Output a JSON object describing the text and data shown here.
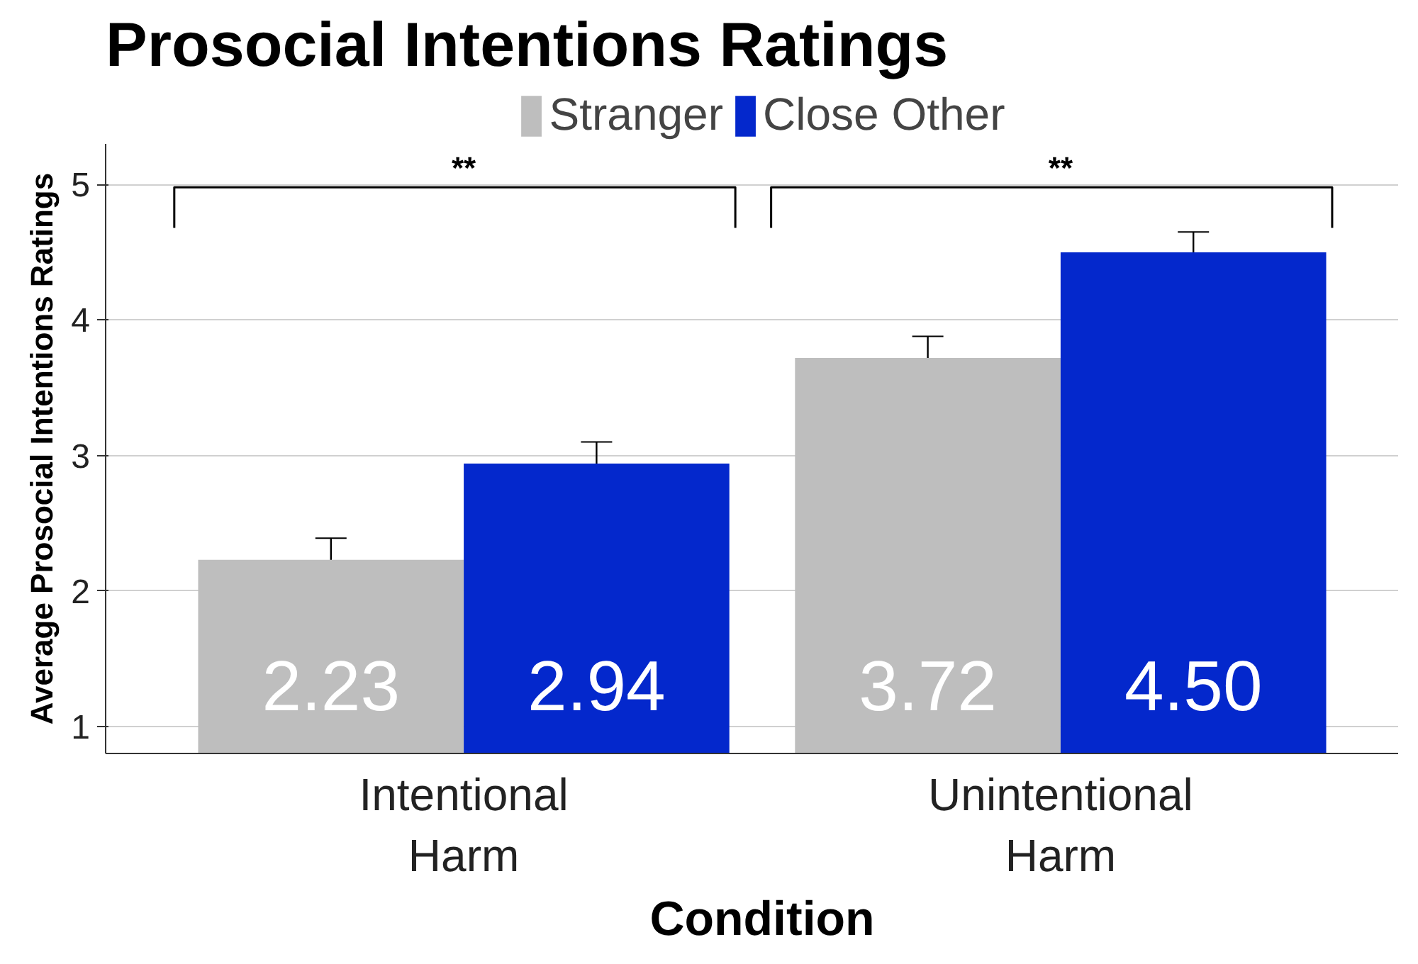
{
  "chart_data": {
    "type": "bar",
    "title": "Prosocial Intentions Ratings",
    "xlabel": "Condition",
    "ylabel": "Average Prosocial Intentions Ratings",
    "categories": [
      "Intentional\nHarm",
      "Unintentional\nHarm"
    ],
    "series": [
      {
        "name": "Stranger",
        "color": "#bebebe",
        "values": [
          2.23,
          3.72
        ],
        "errors": [
          0.16,
          0.16
        ],
        "value_labels": [
          "2.23",
          "3.72"
        ]
      },
      {
        "name": "Close Other",
        "color": "#0428cc",
        "values": [
          2.94,
          4.5
        ],
        "errors": [
          0.16,
          0.15
        ],
        "value_labels": [
          "2.94",
          "4.50"
        ]
      }
    ],
    "ylim": [
      0.8,
      5.3
    ],
    "yticks": [
      1,
      2,
      3,
      4,
      5
    ],
    "grid": "y",
    "legend": "top",
    "annotations": [
      "**",
      "**"
    ]
  }
}
